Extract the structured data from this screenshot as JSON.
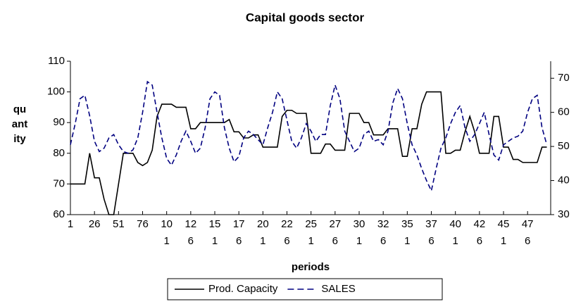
{
  "chart_data": {
    "type": "line",
    "title": "Capital goods sector",
    "xlabel": "periods",
    "ylabel": "quantity",
    "xlim": [
      1,
      500
    ],
    "xticks": [
      1,
      26,
      51,
      76,
      101,
      126,
      151,
      176,
      201,
      226,
      251,
      276,
      301,
      326,
      351,
      376,
      401,
      426,
      451,
      476
    ],
    "ylim": [
      60,
      110
    ],
    "yticks": [
      60,
      70,
      80,
      90,
      100,
      110
    ],
    "y2lim": [
      30,
      75
    ],
    "y2ticks": [
      30,
      40,
      50,
      60,
      70
    ],
    "legend": "bottom",
    "x": [
      1,
      6,
      11,
      16,
      21,
      26,
      31,
      36,
      41,
      46,
      51,
      56,
      61,
      66,
      71,
      76,
      81,
      86,
      91,
      96,
      101,
      106,
      111,
      116,
      121,
      126,
      131,
      136,
      141,
      146,
      151,
      156,
      161,
      166,
      171,
      176,
      181,
      186,
      191,
      196,
      201,
      206,
      211,
      216,
      221,
      226,
      231,
      236,
      241,
      246,
      251,
      256,
      261,
      266,
      271,
      276,
      281,
      286,
      291,
      296,
      301,
      306,
      311,
      316,
      321,
      326,
      331,
      336,
      341,
      346,
      351,
      356,
      361,
      366,
      371,
      376,
      381,
      386,
      391,
      396,
      401,
      406,
      411,
      416,
      421,
      426,
      431,
      436,
      441,
      446,
      451,
      456,
      461,
      466,
      471,
      476,
      481,
      486,
      491,
      496
    ],
    "series": [
      {
        "name": "Prod. Capacity",
        "color": "#000000",
        "dash": false,
        "values": [
          70,
          70,
          70,
          70,
          80,
          72,
          72,
          65,
          60,
          60,
          70,
          80,
          80,
          80,
          77,
          76,
          77,
          81,
          92,
          96,
          96,
          96,
          95,
          95,
          95,
          88,
          88,
          90,
          90,
          90,
          90,
          90,
          90,
          91,
          87,
          87,
          85,
          85,
          86,
          86,
          82,
          82,
          82,
          82,
          92,
          94,
          94,
          93,
          93,
          93,
          80,
          80,
          80,
          83,
          83,
          81,
          81,
          81,
          93,
          93,
          93,
          90,
          90,
          86,
          86,
          86,
          88,
          88,
          88,
          79,
          79,
          88,
          88,
          96,
          100,
          100,
          100,
          100,
          80,
          80,
          81,
          81,
          87,
          92,
          87,
          80,
          80,
          80,
          92,
          92,
          82,
          82,
          78,
          78,
          77,
          77,
          77,
          77,
          82,
          82
        ]
      },
      {
        "name": "SALES",
        "color": "#000080",
        "dash": true,
        "axis": "y2",
        "values": [
          50.5,
          56.7,
          64,
          65,
          59,
          51.5,
          48.5,
          49.5,
          52.5,
          53.5,
          50.5,
          48.5,
          48,
          49,
          52.5,
          60,
          69,
          68,
          60,
          52.5,
          46.5,
          44.5,
          47.5,
          51.5,
          54.5,
          51.5,
          48,
          49.5,
          55.5,
          64,
          66,
          65,
          55.5,
          49.5,
          45.5,
          47,
          52.5,
          54.5,
          53.5,
          52,
          50.5,
          55.5,
          60,
          66,
          64,
          57.7,
          51.5,
          49.5,
          52.5,
          56.7,
          54.5,
          51.5,
          53.5,
          53.5,
          62,
          68,
          64,
          54.5,
          51.5,
          48.5,
          49.5,
          53.5,
          54.5,
          51.5,
          52,
          50.5,
          54.5,
          62.8,
          67,
          64,
          56.7,
          50.5,
          47.5,
          43.5,
          40,
          37,
          43.5,
          49.5,
          52.5,
          56.7,
          60,
          62,
          55.5,
          51.5,
          53.5,
          56.7,
          60,
          53.5,
          47.5,
          46,
          50.5,
          51.5,
          52.5,
          53,
          54.5,
          60,
          64,
          65,
          55.5,
          50.5
        ]
      }
    ]
  }
}
